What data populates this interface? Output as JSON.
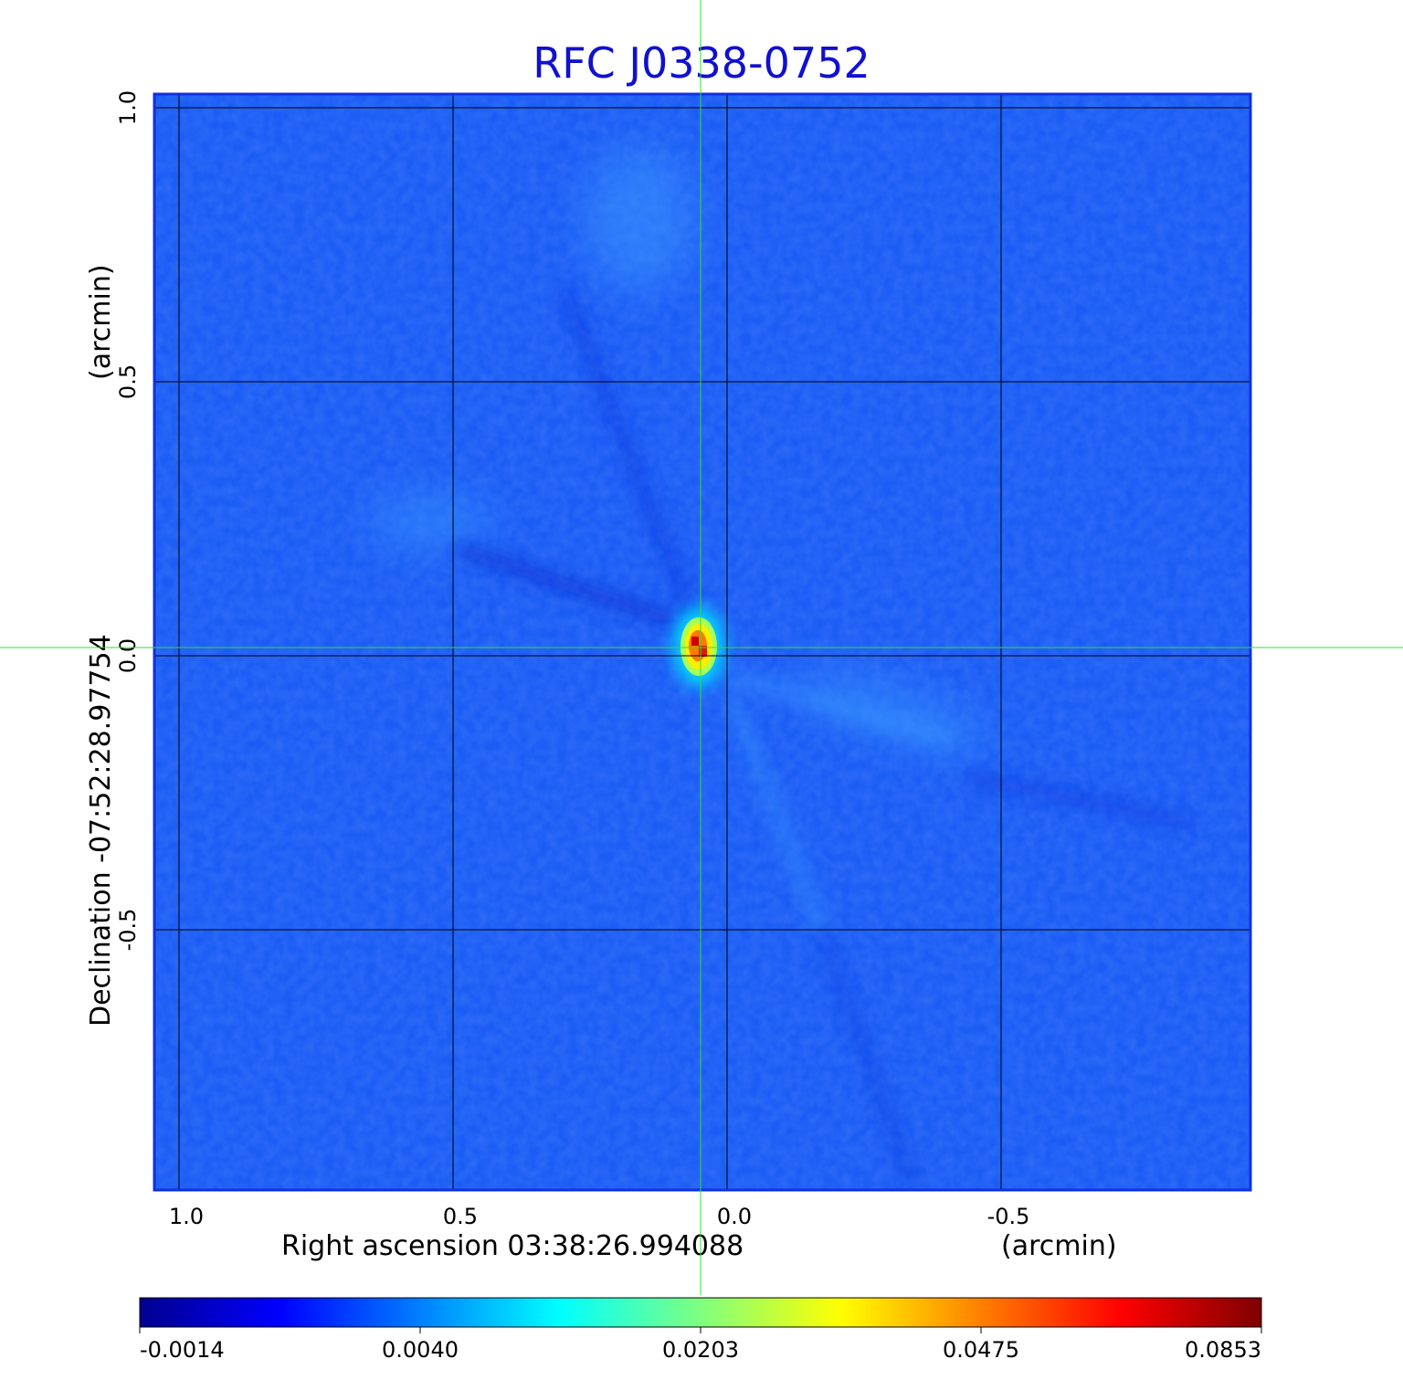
{
  "chart_data": {
    "type": "heatmap",
    "title": "RFC J0338-0752",
    "title_color": "#1010d0",
    "xlabel": "Right ascension  03:38:26.994088",
    "xunit": "(arcmin)",
    "ylabel": "Declination  -07:52:28.97754",
    "yunit": "(arcmin)",
    "x_ticks": [
      "1.0",
      "0.5",
      "0.0",
      "-0.5"
    ],
    "x_tick_values": [
      1.0,
      0.5,
      0.0,
      -0.5
    ],
    "y_ticks": [
      "1.0",
      "0.5",
      "0.0",
      "-0.5"
    ],
    "y_tick_values": [
      1.0,
      0.5,
      0.0,
      -0.5
    ],
    "xlim": [
      1.045,
      -0.955
    ],
    "ylim": [
      -0.975,
      1.025
    ],
    "grid": true,
    "crosshair": {
      "x": 0.0,
      "y": 0.0,
      "color": "#33dd33"
    },
    "colorbar": {
      "colormap": "jet",
      "tick_labels": [
        "-0.0014",
        "0.0040",
        "0.0203",
        "0.0475",
        "0.0853"
      ],
      "tick_values": [
        -0.0014,
        0.004,
        0.0203,
        0.0475,
        0.0853
      ]
    },
    "peak": {
      "x": 0.005,
      "y": 0.003,
      "value": 0.0853
    }
  }
}
